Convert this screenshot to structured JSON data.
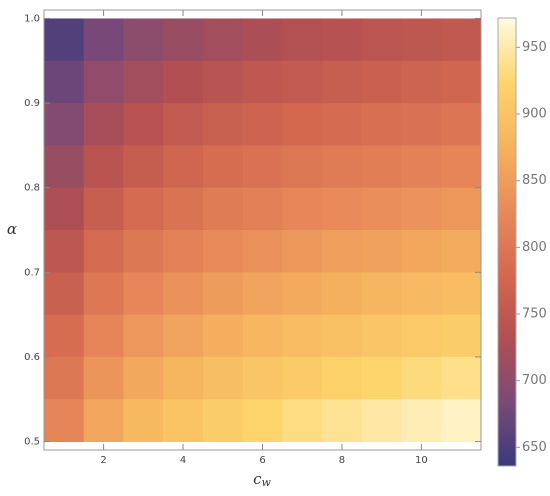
{
  "chart_data": {
    "type": "heatmap",
    "xlabel": "c",
    "xlabel_subscript": "w",
    "ylabel": "α",
    "x": [
      1,
      2,
      3,
      4,
      5,
      6,
      7,
      8,
      9,
      10,
      11
    ],
    "y": [
      0.975,
      0.925,
      0.875,
      0.825,
      0.775,
      0.725,
      0.675,
      0.625,
      0.575,
      0.525
    ],
    "values": [
      [
        654,
        682,
        699,
        710,
        719,
        727,
        733,
        738,
        743,
        748,
        752
      ],
      [
        673,
        702,
        719,
        732,
        741,
        749,
        755,
        761,
        766,
        770,
        775
      ],
      [
        691,
        722,
        740,
        753,
        763,
        771,
        778,
        783,
        789,
        793,
        798
      ],
      [
        710,
        742,
        760,
        774,
        784,
        792,
        800,
        806,
        811,
        816,
        821
      ],
      [
        728,
        762,
        781,
        795,
        806,
        814,
        822,
        828,
        834,
        839,
        844
      ],
      [
        747,
        781,
        802,
        816,
        827,
        836,
        844,
        851,
        856,
        862,
        867
      ],
      [
        765,
        801,
        822,
        837,
        849,
        858,
        866,
        873,
        879,
        885,
        890
      ],
      [
        784,
        821,
        843,
        858,
        870,
        880,
        888,
        895,
        902,
        907,
        913
      ],
      [
        802,
        841,
        863,
        879,
        892,
        902,
        910,
        918,
        924,
        930,
        936
      ],
      [
        821,
        861,
        884,
        900,
        913,
        924,
        933,
        940,
        947,
        953,
        959
      ]
    ],
    "xlim": [
      0.5,
      11.5
    ],
    "ylim": [
      0.49,
      1.01
    ],
    "xticks": [
      2,
      4,
      6,
      8,
      10
    ],
    "yticks": [
      0.5,
      0.6,
      0.7,
      0.8,
      0.9,
      {
        "value": 1,
        "label": "1.0"
      }
    ],
    "zlim": [
      636,
      972
    ],
    "zticks": [
      650,
      700,
      750,
      800,
      850,
      900,
      950
    ],
    "colormap": [
      "#3a3a7c",
      "#7b4a78",
      "#b24f52",
      "#d4694f",
      "#e88a5a",
      "#f6b35e",
      "#fdd56c",
      "#fffbe3"
    ]
  }
}
